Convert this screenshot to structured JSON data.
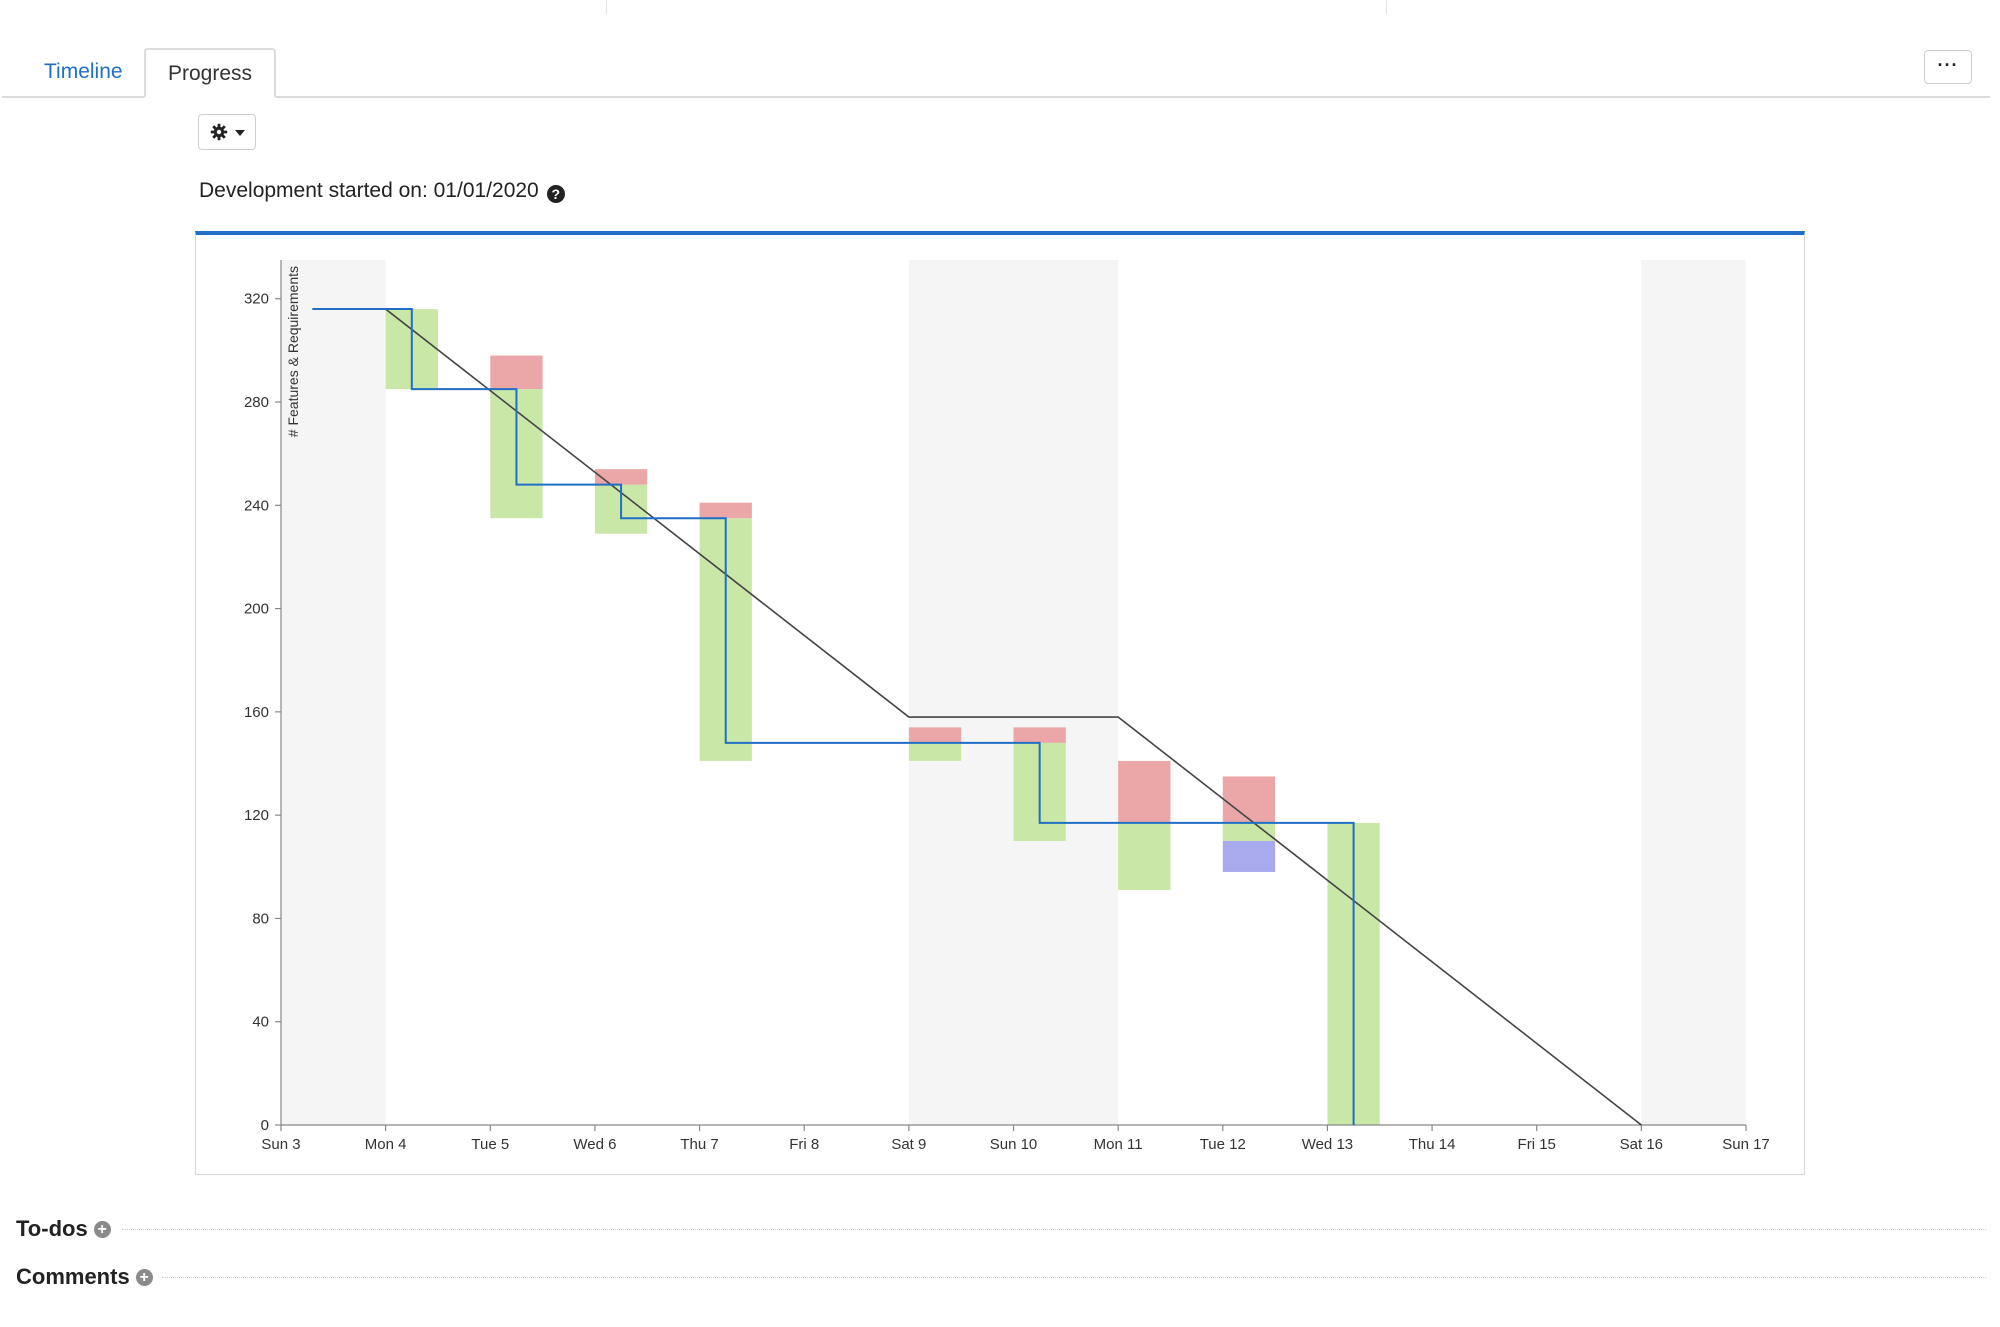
{
  "tabs": [
    {
      "label": "Timeline",
      "active": false
    },
    {
      "label": "Progress",
      "active": true
    }
  ],
  "more_button": {
    "icon": "ellipsis-icon",
    "label": "···"
  },
  "settings_button": {
    "icon": "gear-icon"
  },
  "dev_started": {
    "label": "Development started on: 01/01/2020",
    "icon": "question-circle-icon"
  },
  "sections": {
    "todos": {
      "label": "To-dos",
      "icon": "plus-circle-icon"
    },
    "comments": {
      "label": "Comments",
      "icon": "plus-circle-icon"
    }
  },
  "colors": {
    "accent": "#1f6fc5",
    "completed": "#c9e8a8",
    "added": "#eba7a7",
    "removed": "#a9a9ee",
    "ideal": "#444444",
    "actual": "#1f6fc5",
    "weekend": "#f5f5f5"
  },
  "chart_data": {
    "type": "burndown",
    "ylabel": "# Features & Requirements",
    "xlabel": "",
    "ylim": [
      0,
      335
    ],
    "yticks": [
      0,
      40,
      80,
      120,
      160,
      200,
      240,
      280,
      320
    ],
    "categories": [
      "Sun 3",
      "Mon 4",
      "Tue 5",
      "Wed 6",
      "Thu 7",
      "Fri 8",
      "Sat 9",
      "Sun 10",
      "Mon 11",
      "Tue 12",
      "Wed 13",
      "Thu 14",
      "Fri 15",
      "Sat 16",
      "Sun 17"
    ],
    "weekend_days": [
      "Sun 3",
      "Sat 9",
      "Sun 10",
      "Sat 16"
    ],
    "grid": false,
    "ideal_line": [
      {
        "day": 0.3,
        "value": 316
      },
      {
        "day": 1,
        "value": 316
      },
      {
        "day": 6,
        "value": 158
      },
      {
        "day": 8,
        "value": 158
      },
      {
        "day": 13,
        "value": 0
      }
    ],
    "actual_line": [
      {
        "day": 0.3,
        "value": 316
      },
      {
        "day": 1.25,
        "value": 316
      },
      {
        "day": 1.25,
        "value": 285
      },
      {
        "day": 2.25,
        "value": 285
      },
      {
        "day": 2.25,
        "value": 248
      },
      {
        "day": 3.25,
        "value": 248
      },
      {
        "day": 3.25,
        "value": 235
      },
      {
        "day": 4.25,
        "value": 235
      },
      {
        "day": 4.25,
        "value": 148
      },
      {
        "day": 7.25,
        "value": 148
      },
      {
        "day": 7.25,
        "value": 117
      },
      {
        "day": 10.25,
        "value": 117
      },
      {
        "day": 10.25,
        "value": 0
      }
    ],
    "bars": [
      {
        "day": "Mon 4",
        "completed": [
          285,
          316
        ]
      },
      {
        "day": "Tue 5",
        "completed": [
          235,
          285
        ],
        "added": [
          285,
          298
        ]
      },
      {
        "day": "Wed 6",
        "completed": [
          229,
          248
        ],
        "added": [
          248,
          254
        ]
      },
      {
        "day": "Thu 7",
        "completed": [
          141,
          235
        ],
        "added": [
          235,
          241
        ]
      },
      {
        "day": "Sat 9",
        "completed": [
          141,
          148
        ],
        "added": [
          148,
          154
        ]
      },
      {
        "day": "Sun 10",
        "completed": [
          110,
          148
        ],
        "added": [
          148,
          154
        ]
      },
      {
        "day": "Mon 11",
        "completed": [
          91,
          117
        ],
        "added": [
          117,
          141
        ]
      },
      {
        "day": "Tue 12",
        "completed": [
          110,
          117
        ],
        "added": [
          117,
          135
        ],
        "removed": [
          98,
          110
        ]
      },
      {
        "day": "Wed 13",
        "completed": [
          0,
          117
        ]
      }
    ]
  }
}
